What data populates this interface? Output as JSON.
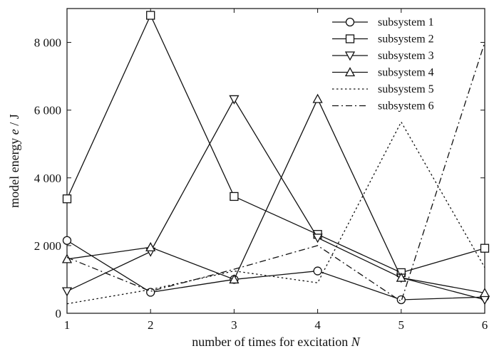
{
  "chart_data": {
    "type": "line",
    "xlabel": "number of times for excitation",
    "xlabel_var": "N",
    "ylabel": "model energy",
    "ylabel_var": "e",
    "ylabel_unit": " / J",
    "xlim": [
      1,
      6
    ],
    "ylim": [
      0,
      9000
    ],
    "x": [
      1,
      2,
      3,
      4,
      5,
      6
    ],
    "x_tick_labels": [
      "1",
      "2",
      "3",
      "4",
      "5",
      "6"
    ],
    "y_ticks": [
      0,
      2000,
      4000,
      6000,
      8000
    ],
    "y_tick_labels": [
      "0",
      "2 000",
      "4 000",
      "6 000",
      "8 000"
    ],
    "grid": false,
    "legend_position": "top-right",
    "series": [
      {
        "name": "subsystem 1",
        "marker": "circle",
        "dash": "solid",
        "values": [
          2150,
          620,
          1000,
          1250,
          400,
          480
        ]
      },
      {
        "name": "subsystem 2",
        "marker": "square",
        "dash": "solid",
        "values": [
          3380,
          8800,
          3450,
          2330,
          1200,
          1920
        ]
      },
      {
        "name": "subsystem 3",
        "marker": "triangle-down",
        "dash": "solid",
        "values": [
          650,
          1820,
          6320,
          2230,
          1050,
          400
        ]
      },
      {
        "name": "subsystem 4",
        "marker": "triangle-up",
        "dash": "solid",
        "values": [
          1600,
          1950,
          1000,
          6330,
          1050,
          600
        ]
      },
      {
        "name": "subsystem 5",
        "marker": "none",
        "dash": "dotted",
        "values": [
          280,
          700,
          1250,
          900,
          5650,
          1350
        ]
      },
      {
        "name": "subsystem 6",
        "marker": "none",
        "dash": "dashdot",
        "values": [
          1650,
          650,
          1300,
          2000,
          350,
          8000
        ]
      }
    ]
  }
}
